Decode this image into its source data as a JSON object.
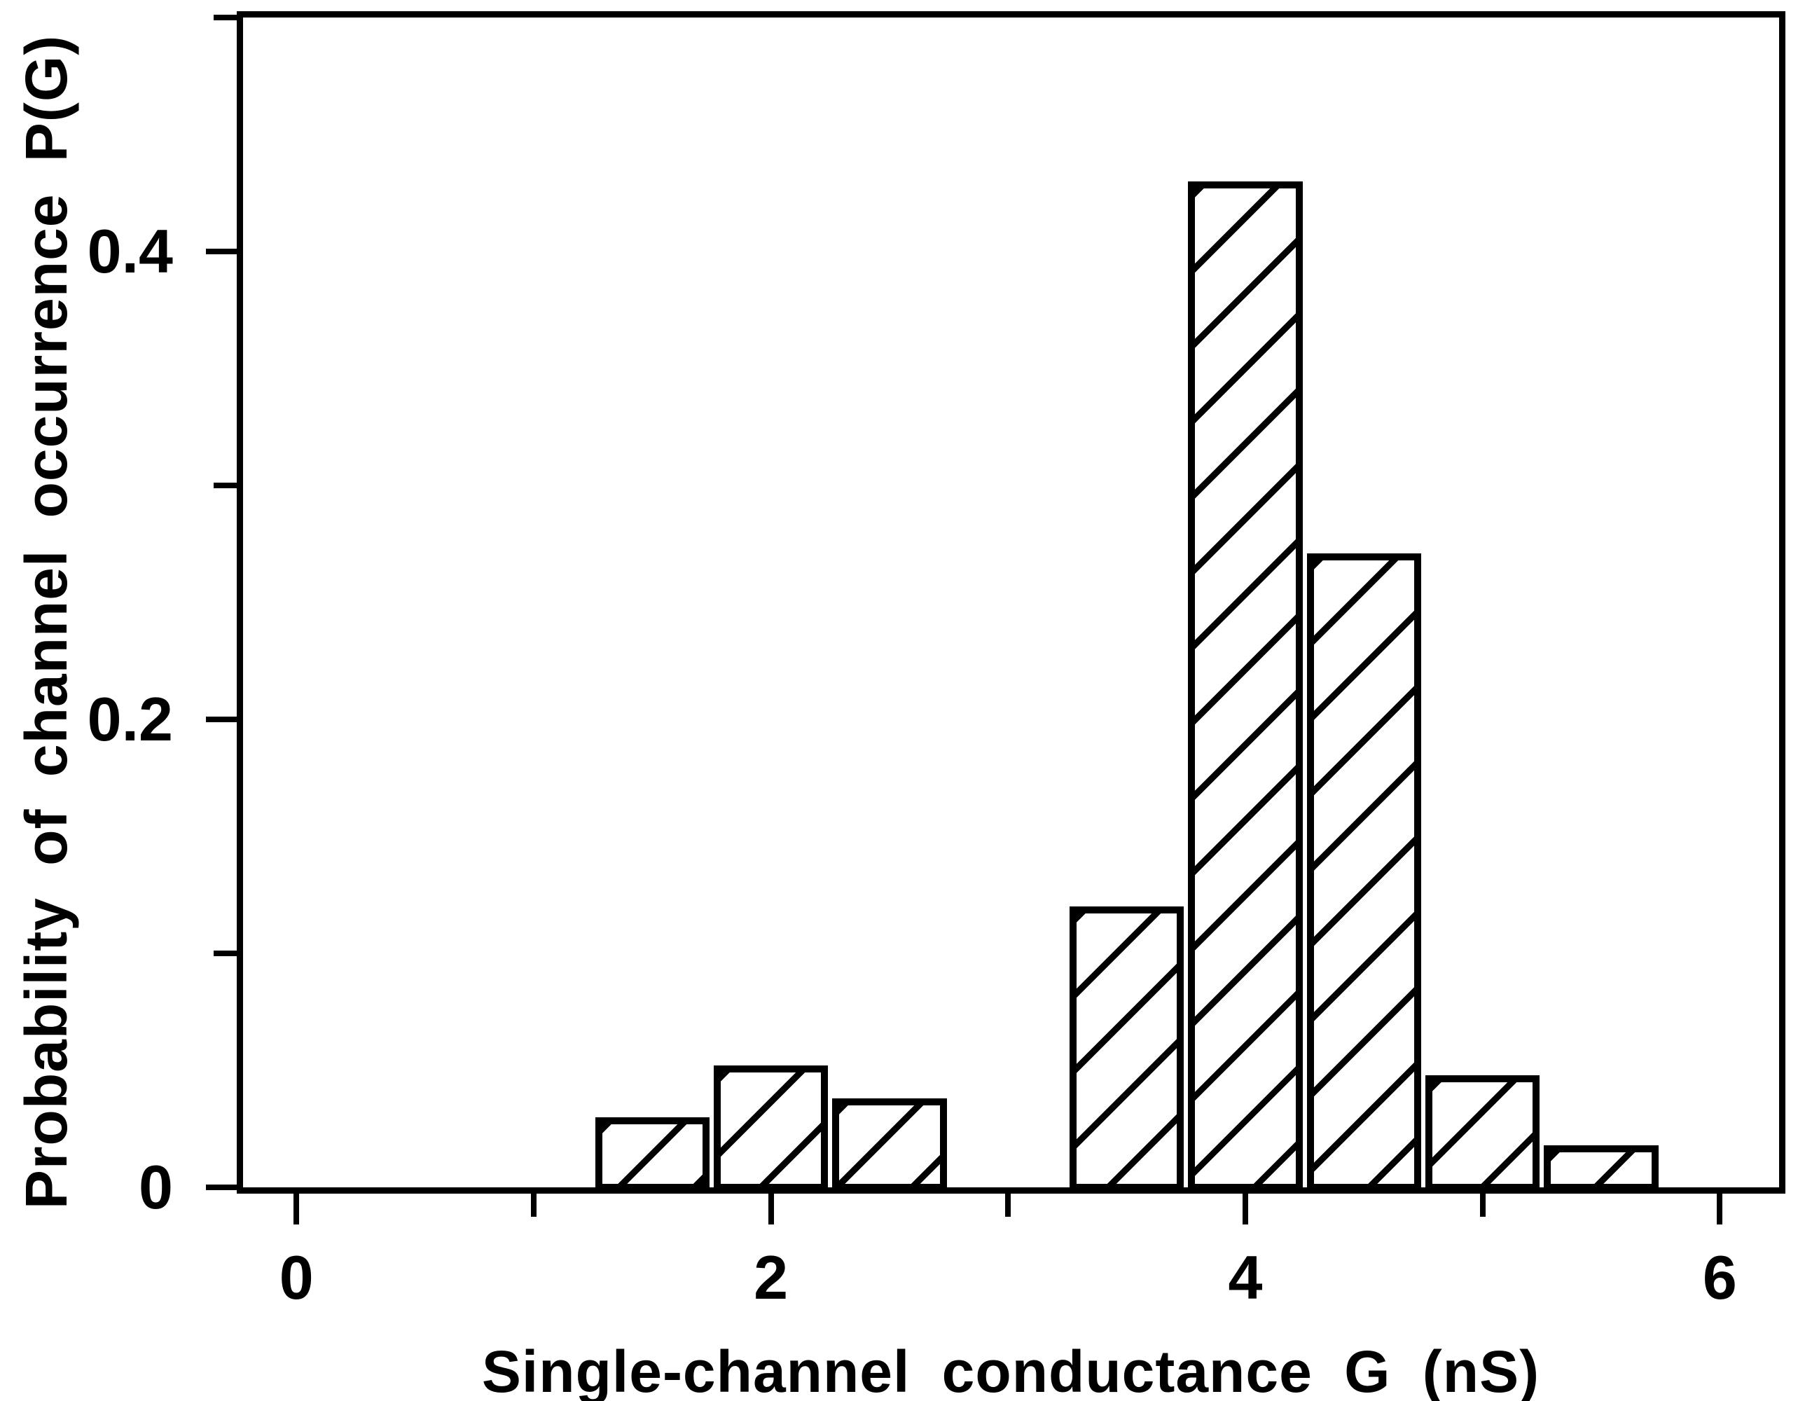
{
  "chart_data": {
    "type": "bar",
    "title": "",
    "xlabel": "Single-channel conductance G (nS)",
    "ylabel": "Probability of channel occurrence P(G)",
    "x": [
      1.5,
      2.0,
      2.5,
      3.5,
      4.0,
      4.5,
      5.0,
      5.5
    ],
    "values": [
      0.03,
      0.052,
      0.038,
      0.12,
      0.43,
      0.271,
      0.048,
      0.018
    ],
    "bar_width": 0.5,
    "bar_style": "black outline with diagonal / hatch fill, white background",
    "xlim": [
      -0.225,
      6.25
    ],
    "ylim": [
      0,
      0.5
    ],
    "x_major_ticks": [
      0,
      2,
      4,
      6
    ],
    "x_major_tick_labels": [
      "0",
      "2",
      "4",
      "6"
    ],
    "x_minor_ticks": [
      1,
      3,
      5
    ],
    "y_major_ticks": [
      0,
      0.2,
      0.4
    ],
    "y_major_tick_labels": [
      "0",
      "0.2",
      "0.4"
    ],
    "y_minor_ticks": [
      0.1,
      0.3,
      0.5
    ],
    "grid": false,
    "legend": null,
    "colors": {
      "foreground": "#000000",
      "background": "#ffffff"
    }
  }
}
